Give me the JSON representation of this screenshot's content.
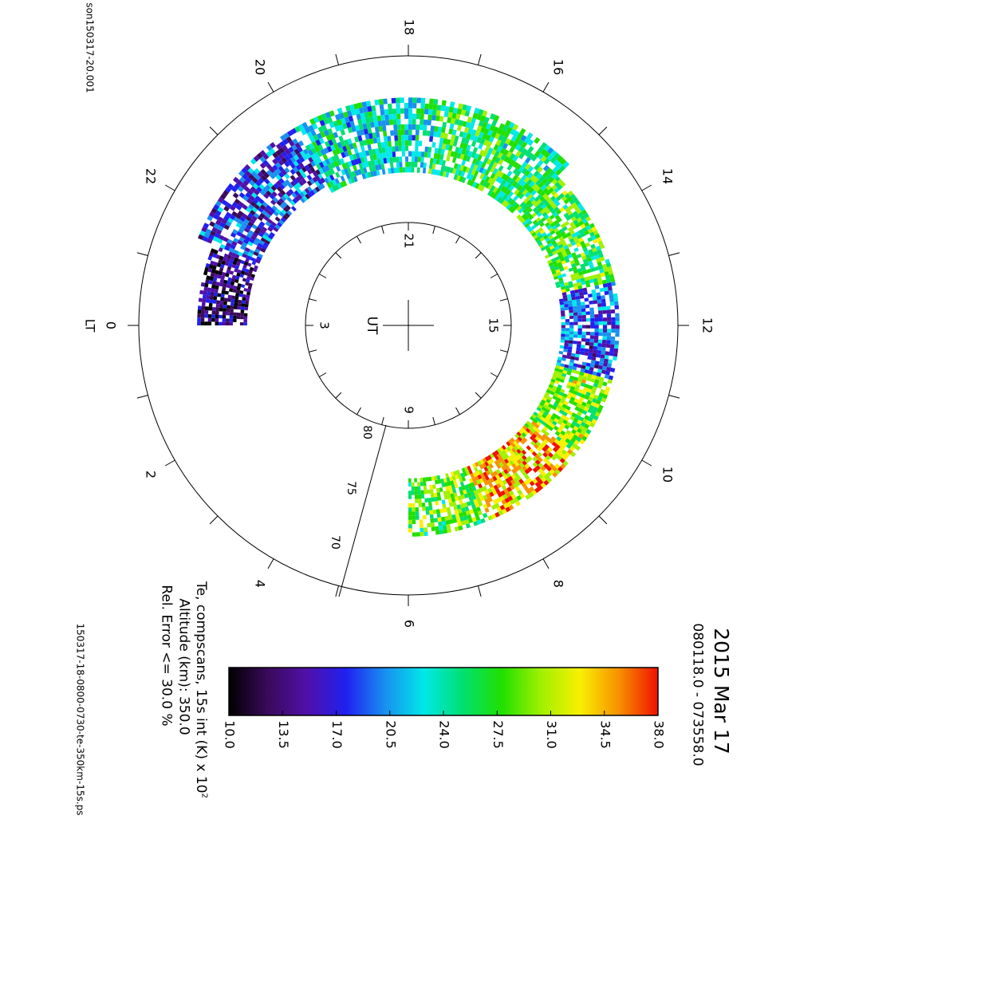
{
  "header": {
    "file_id": "son150317-20.001",
    "footer_file": "150317-18-0800-0730-te-350km-15s.ps"
  },
  "title": {
    "date": "2015 Mar 17",
    "time_range": "080118.0 - 073558.0"
  },
  "caption": {
    "param_label": "Te, compscans, 15s int (K) x 10",
    "param_exponent": "2",
    "altitude": "Altitude (km): 350.0",
    "error": "Rel. Error <= 30.0 %"
  },
  "colorbar": {
    "ticks": [
      "10.0",
      "13.5",
      "17.0",
      "20.5",
      "24.0",
      "27.5",
      "31.0",
      "34.5",
      "38.0"
    ],
    "colors": [
      "#000000",
      "#3a0a5a",
      "#5010a8",
      "#2020f0",
      "#1890f0",
      "#00e8e8",
      "#00e070",
      "#20e000",
      "#a0f000",
      "#f8f000",
      "#f89000",
      "#f01000"
    ]
  },
  "dial": {
    "outer_label": "LT",
    "lt_labels": [
      "0",
      "2",
      "4",
      "6",
      "8",
      "10",
      "12",
      "14",
      "16",
      "18",
      "20",
      "22"
    ],
    "inner_label": "UT",
    "ut_labels": [
      "3",
      "9",
      "15",
      "21"
    ],
    "lat_labels": [
      "70",
      "75",
      "80"
    ]
  },
  "chart_data": {
    "type": "heatmap",
    "projection": "polar (magnetic local time vs latitude), page rotated 90°",
    "title": "2015 Mar 17",
    "subtitle": "080118.0 - 073558.0",
    "parameter": "Te, compscans, 15s int (K) x 10^2",
    "altitude_km": 350.0,
    "rel_error_max_percent": 30.0,
    "color_range": [
      10.0,
      38.0
    ],
    "lat_range": [
      65,
      85
    ],
    "sectors": [
      {
        "lt_range": [
          6.0,
          7.5
        ],
        "lat_range": [
          72,
          79
        ],
        "typical_value": 28
      },
      {
        "lt_range": [
          7.5,
          9.5
        ],
        "lat_range": [
          72,
          79
        ],
        "typical_value": 33
      },
      {
        "lt_range": [
          9.5,
          11.0
        ],
        "lat_range": [
          72,
          79
        ],
        "typical_value": 29
      },
      {
        "lt_range": [
          11.0,
          12.8
        ],
        "lat_range": [
          72,
          79
        ],
        "typical_value": 19
      },
      {
        "lt_range": [
          12.8,
          15.0
        ],
        "lat_range": [
          72,
          79
        ],
        "typical_value": 27
      },
      {
        "lt_range": [
          15.0,
          17.5
        ],
        "lat_range": [
          70,
          79
        ],
        "typical_value": 26
      },
      {
        "lt_range": [
          17.5,
          20.0
        ],
        "lat_range": [
          70,
          79
        ],
        "typical_value": 23
      },
      {
        "lt_range": [
          20.0,
          22.5
        ],
        "lat_range": [
          70,
          78
        ],
        "typical_value": 18
      },
      {
        "lt_range": [
          22.5,
          24.0
        ],
        "lat_range": [
          72,
          78
        ],
        "typical_value": 14
      }
    ]
  }
}
